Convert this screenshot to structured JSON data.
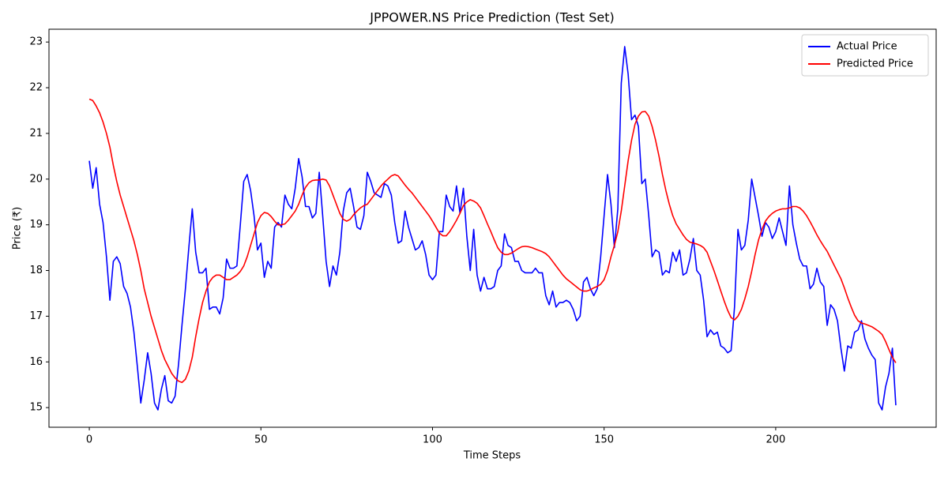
{
  "chart_data": {
    "type": "line",
    "title": "JPPOWER.NS Price Prediction (Test Set)",
    "xlabel": "Time Steps",
    "ylabel": "Price (₹)",
    "x": [
      0,
      1,
      2,
      3,
      4,
      5,
      6,
      7,
      8,
      9,
      10,
      11,
      12,
      13,
      14,
      15,
      16,
      17,
      18,
      19,
      20,
      21,
      22,
      23,
      24,
      25,
      26,
      27,
      28,
      29,
      30,
      31,
      32,
      33,
      34,
      35,
      36,
      37,
      38,
      39,
      40,
      41,
      42,
      43,
      44,
      45,
      46,
      47,
      48,
      49,
      50,
      51,
      52,
      53,
      54,
      55,
      56,
      57,
      58,
      59,
      60,
      61,
      62,
      63,
      64,
      65,
      66,
      67,
      68,
      69,
      70,
      71,
      72,
      73,
      74,
      75,
      76,
      77,
      78,
      79,
      80,
      81,
      82,
      83,
      84,
      85,
      86,
      87,
      88,
      89,
      90,
      91,
      92,
      93,
      94,
      95,
      96,
      97,
      98,
      99,
      100,
      101,
      102,
      103,
      104,
      105,
      106,
      107,
      108,
      109,
      110,
      111,
      112,
      113,
      114,
      115,
      116,
      117,
      118,
      119,
      120,
      121,
      122,
      123,
      124,
      125,
      126,
      127,
      128,
      129,
      130,
      131,
      132,
      133,
      134,
      135,
      136,
      137,
      138,
      139,
      140,
      141,
      142,
      143,
      144,
      145,
      146,
      147,
      148,
      149,
      150,
      151,
      152,
      153,
      154,
      155,
      156,
      157,
      158,
      159,
      160,
      161,
      162,
      163,
      164,
      165,
      166,
      167,
      168,
      169,
      170,
      171,
      172,
      173,
      174,
      175,
      176,
      177,
      178,
      179,
      180,
      181,
      182,
      183,
      184,
      185,
      186,
      187,
      188,
      189,
      190,
      191,
      192,
      193,
      194,
      195,
      196,
      197,
      198,
      199,
      200,
      201,
      202,
      203,
      204,
      205,
      206,
      207,
      208,
      209,
      210,
      211,
      212,
      213,
      214,
      215,
      216,
      217,
      218,
      219,
      220,
      221,
      222,
      223,
      224,
      225,
      226,
      227,
      228,
      229,
      230,
      231,
      232,
      233,
      234,
      235
    ],
    "series": [
      {
        "name": "Actual Price",
        "color": "#0000ff",
        "values": [
          20.4,
          19.8,
          20.25,
          19.45,
          19.05,
          18.3,
          17.35,
          18.2,
          18.3,
          18.15,
          17.65,
          17.5,
          17.2,
          16.65,
          15.9,
          15.1,
          15.6,
          16.2,
          15.75,
          15.1,
          14.95,
          15.4,
          15.7,
          15.15,
          15.1,
          15.25,
          15.95,
          16.8,
          17.6,
          18.5,
          19.35,
          18.4,
          17.95,
          17.95,
          18.05,
          17.15,
          17.2,
          17.2,
          17.05,
          17.4,
          18.25,
          18.05,
          18.05,
          18.1,
          19.0,
          19.95,
          20.1,
          19.75,
          19.2,
          18.45,
          18.6,
          17.85,
          18.2,
          18.05,
          18.95,
          19.05,
          18.95,
          19.65,
          19.45,
          19.35,
          19.8,
          20.45,
          20.05,
          19.4,
          19.4,
          19.15,
          19.25,
          20.15,
          19.2,
          18.2,
          17.65,
          18.1,
          17.9,
          18.4,
          19.3,
          19.7,
          19.8,
          19.4,
          18.95,
          18.9,
          19.2,
          20.15,
          19.95,
          19.7,
          19.65,
          19.6,
          19.9,
          19.85,
          19.65,
          19.05,
          18.6,
          18.65,
          19.3,
          18.95,
          18.7,
          18.45,
          18.5,
          18.65,
          18.35,
          17.9,
          17.8,
          17.9,
          18.85,
          18.85,
          19.65,
          19.4,
          19.3,
          19.85,
          19.25,
          19.8,
          18.75,
          18.0,
          18.9,
          17.9,
          17.55,
          17.85,
          17.6,
          17.6,
          17.65,
          18.0,
          18.1,
          18.8,
          18.55,
          18.5,
          18.2,
          18.2,
          18.0,
          17.95,
          17.95,
          17.95,
          18.05,
          17.95,
          17.95,
          17.45,
          17.25,
          17.55,
          17.2,
          17.3,
          17.3,
          17.35,
          17.3,
          17.15,
          16.9,
          17.0,
          17.75,
          17.85,
          17.6,
          17.45,
          17.6,
          18.3,
          19.2,
          20.1,
          19.45,
          18.5,
          19.35,
          22.1,
          22.9,
          22.3,
          21.3,
          21.4,
          21.15,
          19.9,
          20.0,
          19.2,
          18.3,
          18.45,
          18.4,
          17.9,
          18.0,
          17.95,
          18.4,
          18.2,
          18.45,
          17.9,
          17.95,
          18.25,
          18.7,
          18.0,
          17.9,
          17.35,
          16.55,
          16.7,
          16.6,
          16.65,
          16.35,
          16.3,
          16.2,
          16.25,
          17.2,
          18.9,
          18.45,
          18.55,
          19.1,
          20.0,
          19.6,
          19.2,
          18.75,
          19.05,
          18.95,
          18.7,
          18.85,
          19.15,
          18.85,
          18.55,
          19.85,
          19.0,
          18.6,
          18.25,
          18.1,
          18.1,
          17.6,
          17.7,
          18.05,
          17.75,
          17.65,
          16.8,
          17.25,
          17.15,
          16.9,
          16.3,
          15.8,
          16.35,
          16.3,
          16.65,
          16.7,
          16.9,
          16.5,
          16.3,
          16.15,
          16.05,
          15.1,
          14.95,
          15.45,
          15.75,
          16.3,
          15.05
        ]
      },
      {
        "name": "Predicted Price",
        "color": "#ff0000",
        "values": [
          21.75,
          21.72,
          21.6,
          21.45,
          21.25,
          21.0,
          20.7,
          20.3,
          19.95,
          19.65,
          19.4,
          19.15,
          18.9,
          18.65,
          18.35,
          18.0,
          17.6,
          17.3,
          17.0,
          16.75,
          16.5,
          16.25,
          16.05,
          15.9,
          15.75,
          15.65,
          15.58,
          15.55,
          15.62,
          15.8,
          16.1,
          16.55,
          16.95,
          17.3,
          17.55,
          17.75,
          17.85,
          17.9,
          17.9,
          17.85,
          17.8,
          17.8,
          17.85,
          17.9,
          17.98,
          18.1,
          18.3,
          18.55,
          18.8,
          19.05,
          19.2,
          19.27,
          19.25,
          19.18,
          19.08,
          19.0,
          19.0,
          19.02,
          19.1,
          19.2,
          19.3,
          19.45,
          19.65,
          19.82,
          19.92,
          19.97,
          19.98,
          19.98,
          20.0,
          19.98,
          19.85,
          19.65,
          19.45,
          19.25,
          19.12,
          19.08,
          19.12,
          19.22,
          19.3,
          19.37,
          19.42,
          19.45,
          19.55,
          19.65,
          19.75,
          19.85,
          19.93,
          20.0,
          20.07,
          20.1,
          20.07,
          19.97,
          19.87,
          19.78,
          19.7,
          19.6,
          19.5,
          19.4,
          19.3,
          19.2,
          19.08,
          18.95,
          18.82,
          18.76,
          18.76,
          18.85,
          18.97,
          19.1,
          19.25,
          19.42,
          19.5,
          19.55,
          19.52,
          19.47,
          19.37,
          19.2,
          19.02,
          18.85,
          18.67,
          18.5,
          18.4,
          18.35,
          18.35,
          18.38,
          18.43,
          18.48,
          18.52,
          18.53,
          18.52,
          18.5,
          18.47,
          18.44,
          18.41,
          18.37,
          18.3,
          18.2,
          18.1,
          18.0,
          17.9,
          17.82,
          17.76,
          17.7,
          17.64,
          17.58,
          17.55,
          17.55,
          17.58,
          17.62,
          17.65,
          17.7,
          17.8,
          18.0,
          18.3,
          18.55,
          18.85,
          19.3,
          19.85,
          20.4,
          20.85,
          21.2,
          21.38,
          21.47,
          21.48,
          21.38,
          21.15,
          20.85,
          20.5,
          20.1,
          19.75,
          19.45,
          19.2,
          19.02,
          18.9,
          18.78,
          18.68,
          18.62,
          18.6,
          18.58,
          18.55,
          18.5,
          18.4,
          18.2,
          18.0,
          17.78,
          17.55,
          17.33,
          17.13,
          16.97,
          16.92,
          17.0,
          17.15,
          17.38,
          17.65,
          17.98,
          18.35,
          18.67,
          18.9,
          19.08,
          19.18,
          19.25,
          19.3,
          19.33,
          19.35,
          19.35,
          19.37,
          19.4,
          19.4,
          19.37,
          19.3,
          19.2,
          19.07,
          18.93,
          18.78,
          18.65,
          18.53,
          18.42,
          18.27,
          18.12,
          17.97,
          17.82,
          17.62,
          17.4,
          17.2,
          17.02,
          16.9,
          16.85,
          16.83,
          16.8,
          16.77,
          16.72,
          16.67,
          16.6,
          16.45,
          16.27,
          16.1,
          15.98
        ]
      }
    ],
    "xlim": [
      -11.75,
      246.75
    ],
    "ylim": [
      14.57,
      23.28
    ],
    "xticks": [
      0,
      50,
      100,
      150,
      200
    ],
    "yticks": [
      15,
      16,
      17,
      18,
      19,
      20,
      21,
      22,
      23
    ],
    "legend": "upper right"
  }
}
